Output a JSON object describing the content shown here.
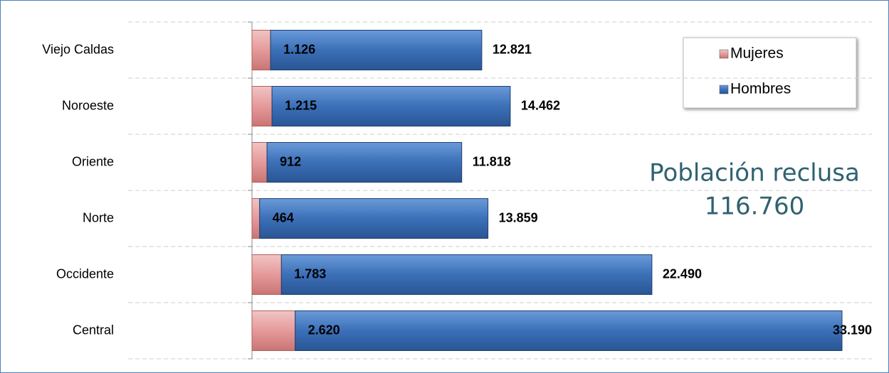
{
  "chart_data": {
    "type": "stacked_barh",
    "categories": [
      "Viejo Caldas",
      "Noroeste",
      "Oriente",
      "Norte",
      "Occidente",
      "Central"
    ],
    "series": [
      {
        "name": "Mujeres",
        "color": "#e59a9a",
        "values": [
          1126,
          1215,
          912,
          464,
          1783,
          2620
        ],
        "value_labels": [
          "1.126",
          "1.215",
          "912",
          "464",
          "1.783",
          "2.620"
        ]
      },
      {
        "name": "Hombres",
        "color": "#3b70b8",
        "values": [
          12821,
          14462,
          11818,
          13859,
          22490,
          33190
        ],
        "value_labels": [
          "12.821",
          "14.462",
          "11.818",
          "13.859",
          "22.490",
          "33.190"
        ]
      }
    ],
    "annotations": [
      "Población reclusa",
      "116.760"
    ],
    "grid": true,
    "legend": "upper right"
  }
}
